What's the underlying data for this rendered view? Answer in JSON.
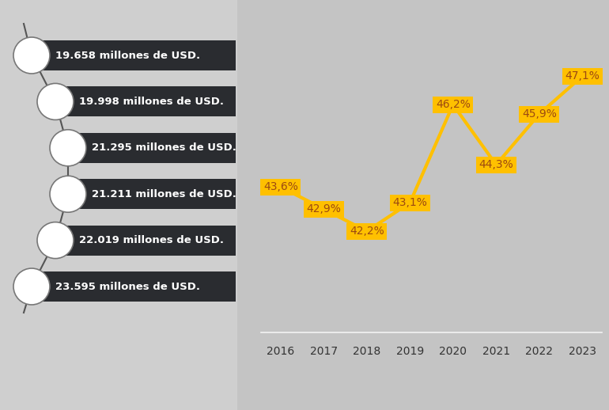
{
  "chart_data": [
    {
      "type": "line",
      "categories": [
        "2016",
        "2017",
        "2018",
        "2019",
        "2020",
        "2021",
        "2022",
        "2023"
      ],
      "values": [
        43.6,
        42.9,
        42.2,
        43.1,
        46.2,
        44.3,
        45.9,
        47.1
      ],
      "value_labels": [
        "43,6%",
        "42,9%",
        "42,2%",
        "43,1%",
        "46,2%",
        "44,3%",
        "45,9%",
        "47,1%"
      ],
      "data_labels": true,
      "color": "#ffc000",
      "ylim": [
        39,
        49
      ],
      "tick_labels": "x",
      "grid": false
    },
    {
      "type": "list",
      "values": [
        19658,
        19998,
        21295,
        21211,
        22019,
        23595
      ],
      "value_labels": [
        "19.658 millones de USD.",
        "19.998 millones de USD.",
        "21.295 millones de USD.",
        "21.211 millones de USD.",
        "22.019 millones de USD.",
        "23.595 millones de USD."
      ],
      "color": "#2a2c30"
    }
  ]
}
